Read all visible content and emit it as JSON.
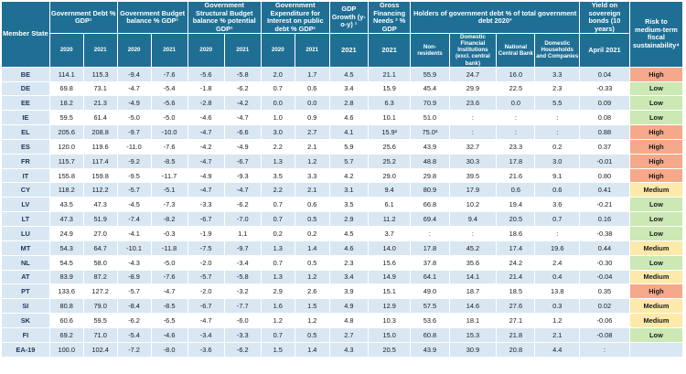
{
  "headers": {
    "member_state": "Member State",
    "gov_debt": "Government Debt % GDP¹",
    "budget_balance": "Government Budget balance % GDP¹",
    "structural": "Government Structural Budget balance % potential GDP¹",
    "expenditure": "Government Expenditure for Interest on public debt % GDP¹",
    "gdp_growth": "GDP Growth (y-o-y) ¹",
    "gross_fin": "Gross Financing Needs ² % GDP",
    "holders": "Holders of government debt % of total government debt 2020³",
    "holders_sub": [
      "Non-residents",
      "Domestic Financial Institutions (excl. central bank)",
      "National Central Bank",
      "Domestic Households and Companies"
    ],
    "yield": "Yield on sovereign bonds (10 years)",
    "risk": "Risk to medium-term fiscal sustainability⁴",
    "year_2020": "2020",
    "year_2021": "2021",
    "april_2021": "April 2021"
  },
  "rows": [
    {
      "c": "BE",
      "v": [
        "114.1",
        "115.3",
        "-9.4",
        "-7.6",
        "-5.6",
        "-5.8",
        "2.0",
        "1.7",
        "4.5",
        "21.1",
        "55.9",
        "24.7",
        "16.0",
        "3.3",
        "0.04"
      ],
      "risk": "High"
    },
    {
      "c": "DE",
      "v": [
        "69.8",
        "73.1",
        "-4.7",
        "-5.4",
        "-1.8",
        "-6.2",
        "0.7",
        "0.6",
        "3.4",
        "15.9",
        "45.4",
        "29.9",
        "22.5",
        "2.3",
        "-0.33"
      ],
      "risk": "Low"
    },
    {
      "c": "EE",
      "v": [
        "18.2",
        "21.3",
        "-4.9",
        "-5.6",
        "-2.8",
        "-4.2",
        "0.0",
        "0.0",
        "2.8",
        "6.3",
        "70.9",
        "23.6",
        "0.0",
        "5.5",
        "0.09"
      ],
      "risk": "Low"
    },
    {
      "c": "IE",
      "v": [
        "59.5",
        "61.4",
        "-5.0",
        "-5.0",
        "-4.6",
        "-4.7",
        "1.0",
        "0.9",
        "4.6",
        "10.1",
        "51.0",
        ":",
        ":",
        ":",
        "0.08"
      ],
      "risk": "Low"
    },
    {
      "c": "EL",
      "v": [
        "205.6",
        "208.8",
        "-9.7",
        "-10.0",
        "-4.7",
        "-6.6",
        "3.0",
        "2.7",
        "4.1",
        "15.9²",
        "75.0³",
        ":",
        ":",
        ":",
        "0.88"
      ],
      "risk": "High"
    },
    {
      "c": "ES",
      "v": [
        "120.0",
        "119.6",
        "-11.0",
        "-7.6",
        "-4.2",
        "-4.9",
        "2.2",
        "2.1",
        "5.9",
        "25.6",
        "43.9",
        "32.7",
        "23.3",
        "0.2",
        "0.37"
      ],
      "risk": "High"
    },
    {
      "c": "FR",
      "v": [
        "115.7",
        "117.4",
        "-9.2",
        "-8.5",
        "-4.7",
        "-6.7",
        "1.3",
        "1.2",
        "5.7",
        "25.2",
        "48.8",
        "30.3",
        "17.8",
        "3.0",
        "-0.01"
      ],
      "risk": "High"
    },
    {
      "c": "IT",
      "v": [
        "155.8",
        "159.8",
        "-9.5",
        "-11.7",
        "-4.9",
        "-9.3",
        "3.5",
        "3.3",
        "4.2",
        "29.0",
        "29.8",
        "39.5",
        "21.6",
        "9.1",
        "0.80"
      ],
      "risk": "High"
    },
    {
      "c": "CY",
      "v": [
        "118.2",
        "112.2",
        "-5.7",
        "-5.1",
        "-4.7",
        "-4.7",
        "2.2",
        "2.1",
        "3.1",
        "9.4",
        "80.9",
        "17.9",
        "0.6",
        "0.6",
        "0.41"
      ],
      "risk": "Medium"
    },
    {
      "c": "LV",
      "v": [
        "43.5",
        "47.3",
        "-4.5",
        "-7.3",
        "-3.3",
        "-6.2",
        "0.7",
        "0.6",
        "3.5",
        "6.1",
        "66.8",
        "10.2",
        "19.4",
        "3.6",
        "-0.21"
      ],
      "risk": "Low"
    },
    {
      "c": "LT",
      "v": [
        "47.3",
        "51.9",
        "-7.4",
        "-8.2",
        "-6.7",
        "-7.0",
        "0.7",
        "0.5",
        "2.9",
        "11.2",
        "69.4",
        "9.4",
        "20.5",
        "0.7",
        "0.16"
      ],
      "risk": "Low"
    },
    {
      "c": "LU",
      "v": [
        "24.9",
        "27.0",
        "-4.1",
        "-0.3",
        "-1.9",
        "1.1",
        "0.2",
        "0.2",
        "4.5",
        "3.7",
        ":",
        ":",
        "18.6",
        ":",
        "-0.38"
      ],
      "risk": "Low"
    },
    {
      "c": "MT",
      "v": [
        "54.3",
        "64.7",
        "-10.1",
        "-11.8",
        "-7.5",
        "-9.7",
        "1.3",
        "1.4",
        "4.6",
        "14.0",
        "17.8",
        "45.2",
        "17.4",
        "19.6",
        "0.44"
      ],
      "risk": "Medium"
    },
    {
      "c": "NL",
      "v": [
        "54.5",
        "58.0",
        "-4.3",
        "-5.0",
        "-2.0",
        "-3.4",
        "0.7",
        "0.5",
        "2.3",
        "15.6",
        "37.8",
        "35.6",
        "24.2",
        "2.4",
        "-0.30"
      ],
      "risk": "Low"
    },
    {
      "c": "AT",
      "v": [
        "83.9",
        "87.2",
        "-8.9",
        "-7.6",
        "-5.7",
        "-5.8",
        "1.3",
        "1.2",
        "3.4",
        "14.9",
        "64.1",
        "14.1",
        "21.4",
        "0.4",
        "-0.04"
      ],
      "risk": "Medium"
    },
    {
      "c": "PT",
      "v": [
        "133.6",
        "127.2",
        "-5.7",
        "-4.7",
        "-2.0",
        "-3.2",
        "2.9",
        "2.6",
        "3.9",
        "15.1",
        "49.0",
        "18.7",
        "18.5",
        "13.8",
        "0.35"
      ],
      "risk": "High"
    },
    {
      "c": "SI",
      "v": [
        "80.8",
        "79.0",
        "-8.4",
        "-8.5",
        "-6.7",
        "-7.7",
        "1.6",
        "1.5",
        "4.9",
        "12.9",
        "57.5",
        "14.6",
        "27.6",
        "0.3",
        "0.02"
      ],
      "risk": "Medium"
    },
    {
      "c": "SK",
      "v": [
        "60.6",
        "59.5",
        "-6.2",
        "-6.5",
        "-4.7",
        "-6.0",
        "1.2",
        "1.2",
        "4.8",
        "10.3",
        "53.6",
        "18.1",
        "27.1",
        "1.2",
        "-0.06"
      ],
      "risk": "Medium"
    },
    {
      "c": "FI",
      "v": [
        "69.2",
        "71.0",
        "-5.4",
        "-4.6",
        "-3.4",
        "-3.3",
        "0.7",
        "0.5",
        "2.7",
        "15.0",
        "60.8",
        "15.3",
        "21.8",
        "2.1",
        "-0.08"
      ],
      "risk": "Low"
    },
    {
      "c": "EA-19",
      "v": [
        "100.0",
        "102.4",
        "-7.2",
        "-8.0",
        "-3.6",
        "-6.2",
        "1.5",
        "1.4",
        "4.3",
        "20.5",
        "43.9",
        "30.9",
        "20.8",
        "4.4",
        ":"
      ],
      "risk": ""
    }
  ]
}
